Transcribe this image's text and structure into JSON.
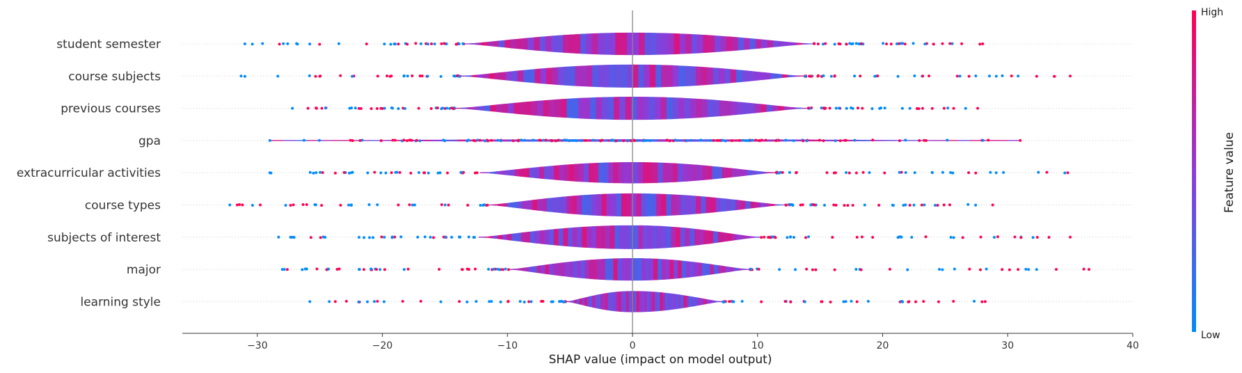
{
  "chart_data": {
    "type": "violin",
    "xlabel": "SHAP value (impact on model output)",
    "xlim": [
      -36,
      40
    ],
    "xticks": [
      -30,
      -20,
      -10,
      0,
      10,
      20,
      30,
      40
    ],
    "features": [
      {
        "name": "student semester",
        "min": -31,
        "max": 28,
        "core": [
          -13.5,
          14.5
        ],
        "max_half": 0.35
      },
      {
        "name": "course subjects",
        "min": -31.3,
        "max": 35,
        "core": [
          -13.8,
          13.8
        ],
        "max_half": 0.36
      },
      {
        "name": "previous courses",
        "min": -27.2,
        "max": 27.6,
        "core": [
          -14.2,
          14.0
        ],
        "max_half": 0.36
      },
      {
        "name": "gpa",
        "min": -29,
        "max": 31,
        "core": [
          -29,
          31
        ],
        "max_half": 0.04
      },
      {
        "name": "extracurricular activities",
        "min": -29,
        "max": 34.8,
        "core": [
          -12.2,
          11.5
        ],
        "max_half": 0.33
      },
      {
        "name": "course types",
        "min": -32.2,
        "max": 28.8,
        "core": [
          -11.6,
          12.2
        ],
        "max_half": 0.36
      },
      {
        "name": "subjects of interest",
        "min": -28.3,
        "max": 35,
        "core": [
          -12.3,
          10.2
        ],
        "max_half": 0.37
      },
      {
        "name": "major",
        "min": -28,
        "max": 36.5,
        "core": [
          -9.9,
          9.4
        ],
        "max_half": 0.35
      },
      {
        "name": "learning style",
        "min": -25.8,
        "max": 28.2,
        "core": [
          -5.3,
          7.2
        ],
        "max_half": 0.33
      }
    ],
    "colorbar": {
      "label": "Feature value",
      "high_label": "High",
      "low_label": "Low",
      "high_color": "#ff0052",
      "low_color": "#008bfb"
    }
  }
}
